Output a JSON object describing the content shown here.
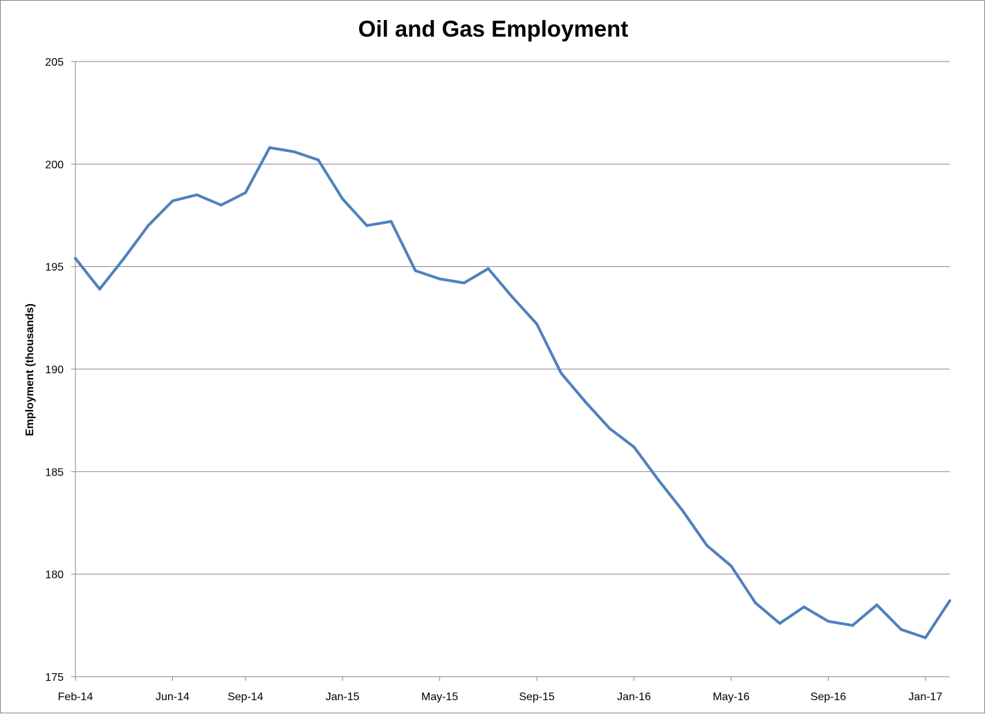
{
  "chart_data": {
    "type": "line",
    "title": "Oil and Gas Employment",
    "xlabel": "",
    "ylabel": "Employment (thousands)",
    "ylim": [
      175,
      205
    ],
    "y_ticks": [
      175,
      180,
      185,
      190,
      195,
      200,
      205
    ],
    "x_tick_labels": [
      "Feb-14",
      "Jun-14",
      "Sep-14",
      "Jan-15",
      "May-15",
      "Sep-15",
      "Jan-16",
      "May-16",
      "Sep-16",
      "Jan-17"
    ],
    "grid": "horizontal",
    "legend": "none",
    "line_color": "#4F81BD",
    "x": [
      "Feb-14",
      "Mar-14",
      "Apr-14",
      "May-14",
      "Jun-14",
      "Jul-14",
      "Aug-14",
      "Sep-14",
      "Oct-14",
      "Nov-14",
      "Dec-14",
      "Jan-15",
      "Feb-15",
      "Mar-15",
      "Apr-15",
      "May-15",
      "Jun-15",
      "Jul-15",
      "Aug-15",
      "Sep-15",
      "Oct-15",
      "Nov-15",
      "Dec-15",
      "Jan-16",
      "Feb-16",
      "Mar-16",
      "Apr-16",
      "May-16",
      "Jun-16",
      "Jul-16",
      "Aug-16",
      "Sep-16",
      "Oct-16",
      "Nov-16",
      "Dec-16",
      "Jan-17",
      "Feb-17"
    ],
    "series": [
      {
        "values": [
          195.4,
          193.9,
          195.4,
          197.0,
          198.2,
          198.5,
          198.0,
          198.6,
          200.8,
          200.6,
          200.2,
          198.3,
          197.0,
          197.2,
          194.8,
          194.4,
          194.2,
          194.9,
          193.5,
          192.2,
          189.8,
          188.4,
          187.1,
          186.2,
          184.6,
          183.1,
          181.4,
          180.4,
          178.6,
          177.6,
          178.4,
          177.7,
          177.5,
          178.5,
          177.3,
          176.9,
          178.7
        ]
      }
    ]
  }
}
